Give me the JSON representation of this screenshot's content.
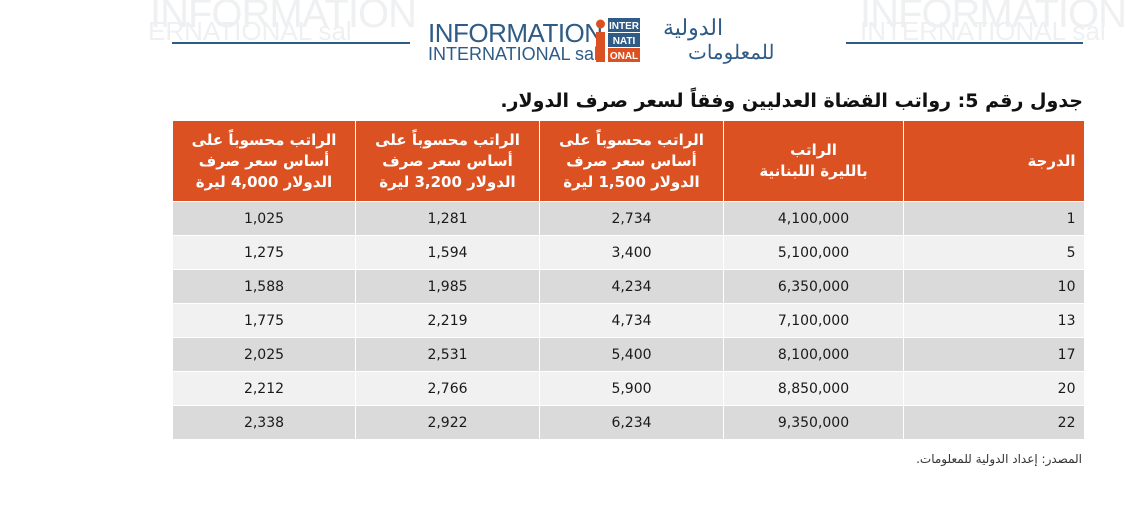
{
  "logo": {
    "en_line1": "INFORMATION",
    "en_line2": "INTERNATIONAL sal",
    "mark_line1": "INTER",
    "mark_line2": "NATI",
    "mark_line3": "ONAL",
    "ar_line1": "الدولية",
    "ar_line2": "للمعلومات",
    "brand_blue": "#2f5c86",
    "brand_orange": "#dc5122"
  },
  "title": "جدول رقم 5: رواتب القضاة العدليين وفقاً لسعر صرف الدولار.",
  "table": {
    "headers": [
      "الدرجة",
      "الراتب|بالليرة اللبنانية",
      "الراتب محسوباً على|أساس سعر صرف|الدولار 1,500 ليرة",
      "الراتب محسوباً على|أساس سعر صرف|الدولار 3,200 ليرة",
      "الراتب محسوباً على|أساس سعر صرف|الدولار 4,000 ليرة"
    ],
    "rows": [
      [
        "1",
        "4,100,000",
        "2,734",
        "1,281",
        "1,025"
      ],
      [
        "5",
        "5,100,000",
        "3,400",
        "1,594",
        "1,275"
      ],
      [
        "10",
        "6,350,000",
        "4,234",
        "1,985",
        "1,588"
      ],
      [
        "13",
        "7,100,000",
        "4,734",
        "2,219",
        "1,775"
      ],
      [
        "17",
        "8,100,000",
        "5,400",
        "2,531",
        "2,025"
      ],
      [
        "20",
        "8,850,000",
        "5,900",
        "2,766",
        "2,212"
      ],
      [
        "22",
        "9,350,000",
        "6,234",
        "2,922",
        "2,338"
      ]
    ],
    "header_color": "#dc5122",
    "row_color_odd": "#dadada",
    "row_color_even": "#f1f1f1"
  },
  "source": "المصدر: إعداد الدولية للمعلومات."
}
